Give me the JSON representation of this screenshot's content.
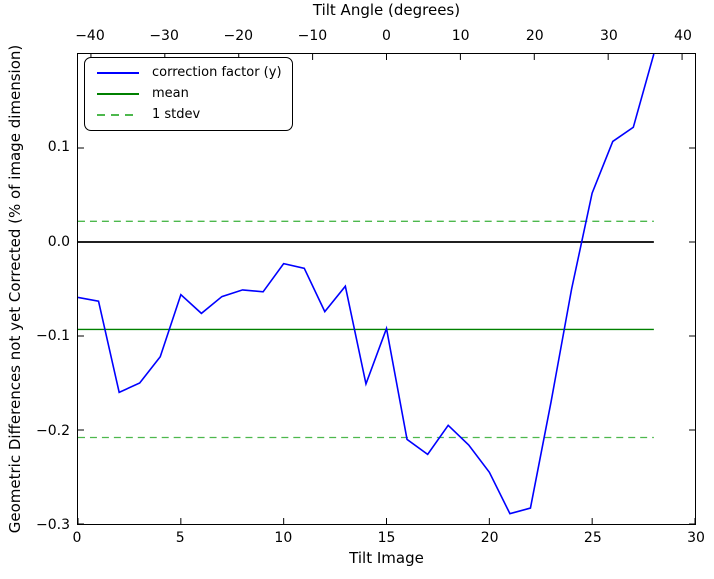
{
  "chart_data": {
    "type": "line",
    "title": "Tilt Angle (degrees)",
    "xlabel": "Tilt Image",
    "ylabel": "Geometric Differences not yet Corrected (% of image dimension)",
    "xlim": [
      0,
      30
    ],
    "ylim": [
      -0.3,
      0.2
    ],
    "top_xlim": [
      -41.75,
      41.75
    ],
    "grid": false,
    "legend_position": "upper left",
    "x_ticks": [
      {
        "v": 0,
        "label": "0"
      },
      {
        "v": 5,
        "label": "5"
      },
      {
        "v": 10,
        "label": "10"
      },
      {
        "v": 15,
        "label": "15"
      },
      {
        "v": 20,
        "label": "20"
      },
      {
        "v": 25,
        "label": "25"
      },
      {
        "v": 30,
        "label": "30"
      }
    ],
    "top_x_ticks": [
      {
        "v": -40,
        "label": "−40"
      },
      {
        "v": -30,
        "label": "−30"
      },
      {
        "v": -20,
        "label": "−20"
      },
      {
        "v": -10,
        "label": "−10"
      },
      {
        "v": 0,
        "label": "0"
      },
      {
        "v": 10,
        "label": "10"
      },
      {
        "v": 20,
        "label": "20"
      },
      {
        "v": 30,
        "label": "30"
      },
      {
        "v": 40,
        "label": "40"
      }
    ],
    "y_ticks": [
      {
        "v": 0.1,
        "label": "0.1"
      },
      {
        "v": 0.0,
        "label": "0.0"
      },
      {
        "v": -0.1,
        "label": "−0.1"
      },
      {
        "v": -0.2,
        "label": "−0.2"
      },
      {
        "v": -0.3,
        "label": "−0.3"
      }
    ],
    "x": [
      0,
      1,
      2,
      3,
      4,
      5,
      6,
      7,
      8,
      9,
      10,
      11,
      12,
      13,
      14,
      15,
      16,
      17,
      18,
      19,
      20,
      21,
      22,
      23,
      24,
      25,
      26,
      27,
      28
    ],
    "series": [
      {
        "name": "correction factor (y)",
        "kind": "line",
        "color": "#0000ff",
        "style": "solid",
        "width": 1.6,
        "values": [
          -0.059,
          -0.063,
          -0.16,
          -0.15,
          -0.122,
          -0.056,
          -0.076,
          -0.058,
          -0.051,
          -0.053,
          -0.023,
          -0.028,
          -0.074,
          -0.047,
          -0.151,
          -0.092,
          -0.21,
          -0.226,
          -0.195,
          -0.216,
          -0.245,
          -0.289,
          -0.283,
          -0.17,
          -0.05,
          0.052,
          0.107,
          0.122,
          0.2
        ]
      },
      {
        "name": "zero-baseline",
        "kind": "hline",
        "color": "#000000",
        "style": "solid",
        "width": 1.8,
        "y": 0.0,
        "x_extent": [
          0,
          28
        ]
      },
      {
        "name": "1 stdev",
        "kind": "hline",
        "color": "#4db84d",
        "style": "dashed",
        "width": 1.3,
        "y": [
          0.022,
          -0.208
        ],
        "x_extent": [
          0,
          28
        ]
      },
      {
        "name": "mean",
        "kind": "hline",
        "color": "#008000",
        "style": "solid",
        "width": 1.3,
        "y": -0.093,
        "x_extent": [
          0,
          28
        ]
      }
    ],
    "stats": {
      "mean": -0.093,
      "stdev": 0.115
    },
    "legend": [
      {
        "label": "correction factor (y)",
        "color": "#0000ff",
        "dash": "solid"
      },
      {
        "label": "mean",
        "color": "#008000",
        "dash": "solid"
      },
      {
        "label": "1 stdev",
        "color": "#4db84d",
        "dash": "dashed"
      }
    ]
  }
}
